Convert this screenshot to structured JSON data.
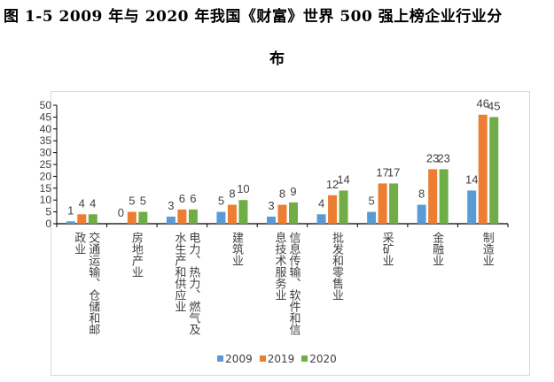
{
  "title_line1": "图 1-5   2009 年与 2020 年我国《财富》世界 500 强上榜企业行业分",
  "title_line2": "布",
  "chart_data": {
    "type": "bar",
    "title": "图 1-5 2009 年与 2020 年我国《财富》世界 500 强上榜企业行业分布",
    "categories": [
      "交通运输、仓储和邮政业",
      "房地产业",
      "电力、热力、燃气及水生产和供应业",
      "建筑业",
      "信息传输、软件和信息技术服务业",
      "批发和零售业",
      "采矿业",
      "金融业",
      "制造业"
    ],
    "series": [
      {
        "name": "2009",
        "color": "#5b9bd5",
        "values": [
          1,
          0,
          3,
          5,
          3,
          4,
          5,
          8,
          14
        ]
      },
      {
        "name": "2019",
        "color": "#ed7d31",
        "values": [
          4,
          5,
          6,
          8,
          8,
          12,
          17,
          23,
          46
        ]
      },
      {
        "name": "2020",
        "color": "#70ad47",
        "values": [
          4,
          5,
          6,
          10,
          9,
          14,
          17,
          23,
          45
        ]
      }
    ],
    "yticks": [
      "0",
      "5",
      "10",
      "15",
      "20",
      "25",
      "30",
      "35",
      "40",
      "45",
      "50"
    ],
    "ylim": [
      0,
      50
    ],
    "xlabel": "",
    "ylabel": "",
    "legend": "bottom",
    "grid": false
  }
}
